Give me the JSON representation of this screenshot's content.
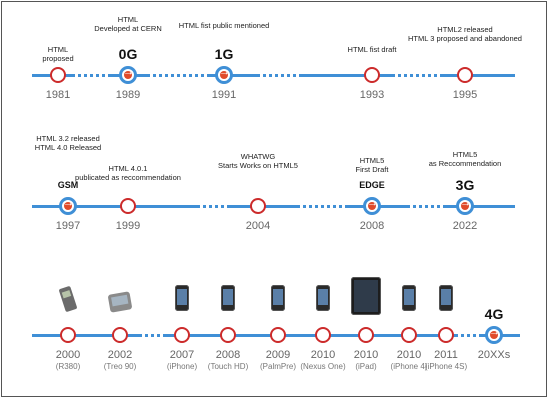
{
  "rows": [
    {
      "events": [
        {
          "year": "1981",
          "label": "HTML\nproposed",
          "gen": ""
        },
        {
          "year": "1989",
          "label": "HTML\nDeveloped at CERN",
          "gen": "0G",
          "major": true
        },
        {
          "year": "1991",
          "label": "HTML fist public mentioned",
          "gen": "1G",
          "major": true
        },
        {
          "year": "1993",
          "label": "HTML fist draft",
          "gen": ""
        },
        {
          "year": "1995",
          "label": "HTML2 released\nHTML 3 proposed and abandoned",
          "gen": ""
        }
      ]
    },
    {
      "events": [
        {
          "year": "1997",
          "label": "HTML 3.2 released\nHTML 4.0 Released",
          "gen": "GSM",
          "major": true
        },
        {
          "year": "1999",
          "label": "HTML 4.0.1\npublicated as reccommendation",
          "gen": ""
        },
        {
          "year": "2004",
          "label": "WHATWG\nStarts Works on HTML5",
          "gen": ""
        },
        {
          "year": "2008",
          "label": "HTML5\nFirst Draft",
          "gen": "EDGE",
          "major": true
        },
        {
          "year": "2022",
          "label": "HTML5\nas Reccommendation",
          "gen": "3G",
          "major": true
        }
      ]
    },
    {
      "events": [
        {
          "year": "2000",
          "sub": "(R380)",
          "device": "old"
        },
        {
          "year": "2002",
          "sub": "(Treo 90)",
          "device": "treo"
        },
        {
          "year": "2007",
          "sub": "(iPhone)",
          "device": "phone"
        },
        {
          "year": "2008",
          "sub": "(Touch HD)",
          "device": "phone"
        },
        {
          "year": "2009",
          "sub": "(PalmPre)",
          "device": "phone"
        },
        {
          "year": "2010",
          "sub": "(Nexus One)",
          "device": "phone"
        },
        {
          "year": "2010",
          "sub": "(iPad)",
          "device": "tablet"
        },
        {
          "year": "2010",
          "sub": "(iPhone 4)",
          "device": "phone"
        },
        {
          "year": "2011",
          "sub": "(iPhone 4S)",
          "device": "phone"
        },
        {
          "year": "20XXs",
          "sub": "",
          "gen": "4G",
          "major": true
        }
      ]
    }
  ],
  "colors": {
    "axis": "#3f8fd6",
    "node_ring": "#cc2b2b",
    "major_ring": "#3f8fd6",
    "major_fill": "#e04a2a"
  }
}
